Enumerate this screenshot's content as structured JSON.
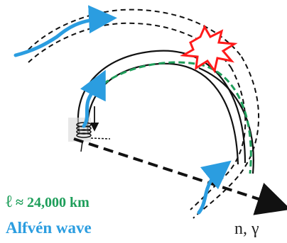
{
  "labels": {
    "length_symbol": "ℓ",
    "length_value": "≈ 24,000 km",
    "wave_name": "Alfvén wave",
    "axis_label": "n, γ"
  },
  "colors": {
    "wave_arrow": "#2b9de0",
    "field_line_green": "#1e9e5a",
    "flare_red": "#ff1a1a",
    "flare_fill": "#ffffff",
    "dashed_black": "#111111",
    "solid_black": "#111111"
  },
  "icons": {
    "flare": "explosion-star-icon",
    "wave": "wavy-arrow-icon",
    "coil": "coil-source-icon"
  }
}
